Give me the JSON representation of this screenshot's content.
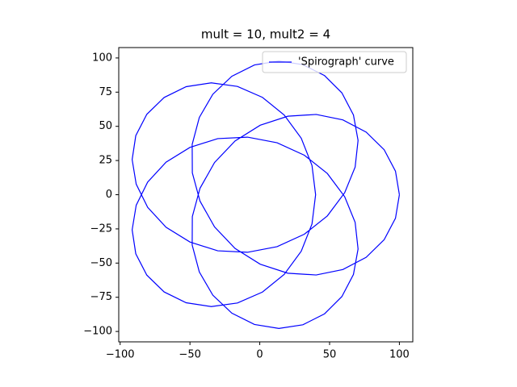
{
  "chart_data": {
    "type": "line",
    "title": "mult = 10, mult2 = 4",
    "xlim": [
      -101.0,
      109.6
    ],
    "ylim": [
      -107.6,
      107.6
    ],
    "xticks": [
      {
        "value": -100,
        "label": "−100"
      },
      {
        "value": -50,
        "label": "−50"
      },
      0,
      50,
      100
    ],
    "yticks": [
      {
        "value": -100,
        "label": "−100"
      },
      {
        "value": -75,
        "label": "−75"
      },
      {
        "value": -50,
        "label": "−50"
      },
      {
        "value": -25,
        "label": "−25"
      },
      0,
      25,
      50,
      75,
      100
    ],
    "legend": "upper right",
    "grid": false,
    "series": [
      {
        "name": "'Spirograph' curve",
        "color": "#0000ff",
        "x": [
          100,
          97.2,
          89.1,
          76.2,
          59.5,
          40.4,
          20.1,
          0.3,
          -17.7,
          -32.4,
          -42.8,
          -48.3,
          -48.4,
          -43.3,
          -33.6,
          -20.0,
          -3.8,
          13.7,
          30.9,
          46.4,
          58.8,
          67.1,
          70.4,
          68.3,
          60.8,
          48.4,
          31.9,
          12.4,
          -8.8,
          -30.1,
          -50.0,
          -67.1,
          -80.3,
          -88.5,
          -91.4,
          -88.8,
          -80.9,
          -68.5,
          -52.7,
          -34.7,
          -16.0,
          1.9,
          17.5,
          29.7,
          37.4,
          40.0,
          37.4,
          29.7,
          17.5,
          1.9,
          -16.0,
          -34.7,
          -52.7,
          -68.5,
          -80.9,
          -88.8,
          -91.4,
          -88.5,
          -80.3,
          -67.1,
          -50.0,
          -30.1,
          -8.8,
          12.4,
          31.9,
          48.4,
          60.8,
          68.3,
          70.4,
          67.1,
          58.8,
          46.4,
          30.9,
          13.7,
          -3.8,
          -20.0,
          -33.6,
          -43.3,
          -48.4,
          -48.3,
          -42.8,
          -32.4,
          -17.7,
          0.3,
          20.1,
          40.4,
          59.5,
          76.2,
          89.1,
          97.2,
          100
        ],
        "y": [
          0,
          -17.2,
          -32.9,
          -45.8,
          -54.7,
          -58.7,
          -57.4,
          -50.8,
          -39.3,
          -23.5,
          -4.7,
          16.0,
          36.8,
          56.5,
          73.5,
          86.6,
          94.9,
          97.8,
          95.1,
          87.1,
          74.5,
          58.3,
          39.7,
          20.2,
          1.4,
          -15.5,
          -28.9,
          -38.0,
          -42.1,
          -41.0,
          -34.6,
          -23.8,
          -9.2,
          7.7,
          25.7,
          43.2,
          58.8,
          71.1,
          79.0,
          81.8,
          79.2,
          71.2,
          58.3,
          41.3,
          21.4,
          0,
          -21.4,
          -41.3,
          -58.3,
          -71.2,
          -79.2,
          -81.8,
          -79.0,
          -71.1,
          -58.8,
          -43.2,
          -25.7,
          -7.7,
          9.2,
          23.8,
          34.6,
          41.0,
          42.1,
          38.0,
          28.9,
          15.5,
          -1.4,
          -20.2,
          -39.7,
          -58.3,
          -74.5,
          -87.1,
          -95.1,
          -97.8,
          -94.9,
          -86.6,
          -73.5,
          -56.5,
          -36.8,
          -16.0,
          4.7,
          23.5,
          39.3,
          50.8,
          57.4,
          58.7,
          54.7,
          45.8,
          32.9,
          17.2,
          0
        ]
      }
    ]
  }
}
